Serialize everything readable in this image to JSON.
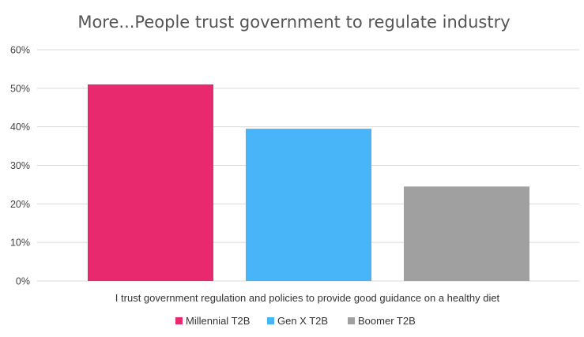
{
  "chart_data": {
    "type": "bar",
    "title": "More...People trust government to regulate industry",
    "categories": [
      "I trust government regulation and policies to provide good guidance on a healthy diet"
    ],
    "series": [
      {
        "name": "Millennial T2B",
        "values": [
          51
        ],
        "color": "#e8296e"
      },
      {
        "name": "Gen X T2B",
        "values": [
          39.5
        ],
        "color": "#47b5f8"
      },
      {
        "name": "Boomer T2B",
        "values": [
          24.5
        ],
        "color": "#a0a0a0"
      }
    ],
    "ylim": [
      0,
      60
    ],
    "yticks": [
      "0%",
      "10%",
      "20%",
      "30%",
      "40%",
      "50%",
      "60%"
    ],
    "ytick_values": [
      0,
      10,
      20,
      30,
      40,
      50,
      60
    ],
    "grid": true,
    "legend_position": "bottom"
  }
}
